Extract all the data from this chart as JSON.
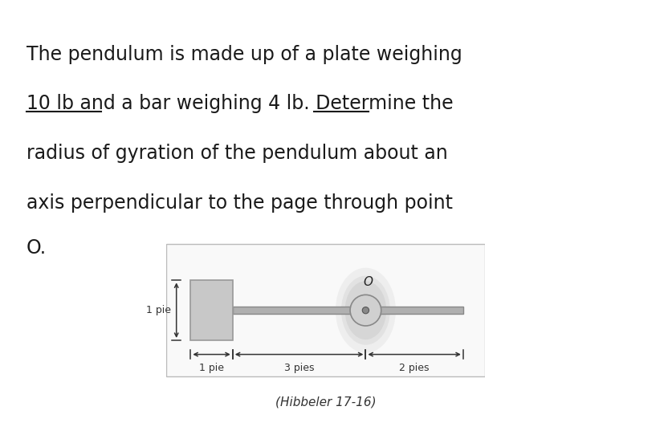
{
  "bg_color": "#ffffff",
  "fig_width": 8.28,
  "fig_height": 5.52,
  "text_color": "#1a1a1a",
  "title_lines": [
    "The pendulum is made up of a plate weighing",
    "10 lb and a bar weighing 4 lb. Determine the",
    "radius of gyration of the pendulum about an",
    "axis perpendicular to the page through point",
    "O."
  ],
  "caption": "(Hibbeler 17-16)",
  "plate_color": "#c8c8c8",
  "plate_edge_color": "#999999",
  "bar_color": "#b0b0b0",
  "bar_edge_color": "#888888",
  "pin_outer_color": "#d0d0d0",
  "pin_inner_color": "#888888",
  "shadow_color": "#c0c0c0",
  "dim_color": "#333333",
  "box_edge_color": "#bbbbbb",
  "box_face_color": "#f9f9f9"
}
